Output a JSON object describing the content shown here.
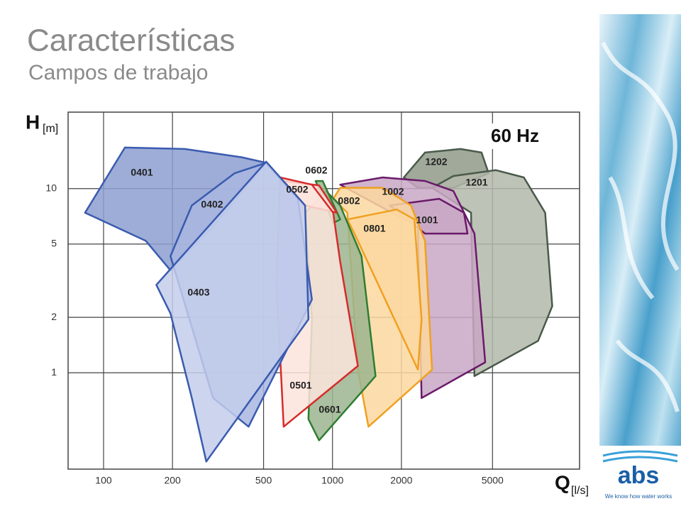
{
  "title": "Características",
  "subtitle": "Campos de trabajo",
  "logo": {
    "name": "abs",
    "tagline": "We know how water works"
  },
  "chart_data": {
    "type": "area",
    "x_label": "Q",
    "x_unit": "[l/s]",
    "y_label": "H",
    "y_unit": "[m]",
    "annotation": "60 Hz",
    "log_x": true,
    "log_y": true,
    "grid": true,
    "xlim": [
      70,
      12000
    ],
    "ylim": [
      0.3,
      26
    ],
    "xticks": [
      100,
      200,
      500,
      1000,
      2000,
      5000
    ],
    "yticks": [
      1,
      2,
      5,
      10
    ],
    "series": [
      {
        "name": "1202",
        "color": "#4a5a4a",
        "fill": "#8f9a88",
        "x": [
          2050,
          2535,
          3622,
          4477,
          4808,
          3373,
          2361
        ],
        "y": [
          11.5,
          15.7,
          16.4,
          15.7,
          12.1,
          10.1,
          10.1
        ]
      },
      {
        "name": "1201",
        "color": "#4a5a4a",
        "fill": "#b3b8aa",
        "x": [
          2723,
          3373,
          5164,
          6855,
          8490,
          9120,
          7907,
          4169,
          4027
        ],
        "y": [
          10.1,
          11.7,
          12.6,
          11.5,
          7.4,
          2.3,
          1.49,
          0.96,
          7.4
        ]
      },
      {
        "name": "1002",
        "color": "#6a1b6a",
        "fill": "#c9a7c4",
        "x": [
          1081,
          1656,
          2535,
          3373,
          4169,
          4645,
          2449,
          2361
        ],
        "y": [
          10.5,
          11.5,
          11.0,
          9.7,
          5.7,
          1.14,
          0.73,
          6.2
        ]
      },
      {
        "name": "1001",
        "color": "#6a1b6a",
        "fill": "#c9a7c4",
        "x": [
          1778,
          2924,
          3750,
          3890,
          2535
        ],
        "y": [
          8.1,
          8.8,
          7.4,
          5.7,
          5.7
        ]
      },
      {
        "name": "0802",
        "color": "#f0a020",
        "fill": "#fbd8a0",
        "x": [
          1007,
          1081,
          1656,
          2202,
          2535,
          2723,
          1436,
          1291,
          1161
        ],
        "y": [
          8.8,
          10.1,
          10.1,
          8.1,
          5.2,
          1.04,
          0.51,
          1.04,
          7.4
        ]
      },
      {
        "name": "0801",
        "color": "#f0a020",
        "fill": "#fbd8a0",
        "x": [
          1161,
          1909,
          2280,
          2449,
          2361,
          1247
        ],
        "y": [
          6.8,
          7.7,
          6.8,
          1.95,
          1.04,
          5.7
        ]
      },
      {
        "name": "0601",
        "color": "#2e7d32",
        "fill": "#9bb58f",
        "x": [
          759,
          938,
          1081,
          1339,
          1542,
          874,
          785,
          813
        ],
        "y": [
          7.4,
          9.7,
          8.1,
          4.3,
          0.96,
          0.43,
          0.56,
          1.95
        ]
      },
      {
        "name": "0602",
        "color": "#2e7d32",
        "fill": "#9bb58f",
        "x": [
          844,
          906,
          1081,
          1007
        ],
        "y": [
          11.0,
          11.0,
          6.8,
          6.5
        ]
      },
      {
        "name": "0502",
        "color": "#d62b2b",
        "fill": "#fde4dc",
        "x": [
          612,
          874,
          1044,
          759
        ],
        "y": [
          11.0,
          10.4,
          7.4,
          8.1
        ]
      },
      {
        "name": "0501",
        "color": "#d62b2b",
        "fill": "#fde4dc",
        "x": [
          591,
          813,
          1007,
          1081,
          1291,
          612,
          570
        ],
        "y": [
          11.5,
          10.5,
          7.4,
          4.0,
          1.09,
          0.51,
          3.0
        ]
      },
      {
        "name": "0401",
        "color": "#3a5bb0",
        "fill": "#8d9fd0",
        "x": [
          83,
          124,
          226,
          400,
          513,
          301,
          196,
          153
        ],
        "y": [
          7.4,
          16.7,
          16.4,
          14.8,
          13.8,
          6.2,
          3.6,
          5.2
        ]
      },
      {
        "name": "0402",
        "color": "#3a5bb0",
        "fill": "#a8b6e0",
        "x": [
          196,
          243,
          373,
          513,
          706,
          813,
          430,
          301
        ],
        "y": [
          4.3,
          8.1,
          12.1,
          13.8,
          8.8,
          2.5,
          0.51,
          0.73
        ]
      },
      {
        "name": "0403",
        "color": "#3a5bb0",
        "fill": "#c3cdeb",
        "x": [
          170,
          513,
          759,
          785,
          281,
          243,
          196
        ],
        "y": [
          3.0,
          14.0,
          8.1,
          1.95,
          0.33,
          0.73,
          2.1
        ]
      }
    ]
  }
}
